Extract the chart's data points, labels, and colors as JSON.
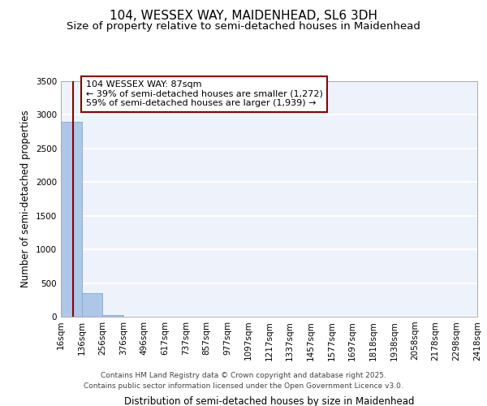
{
  "title1": "104, WESSEX WAY, MAIDENHEAD, SL6 3DH",
  "title2": "Size of property relative to semi-detached houses in Maidenhead",
  "xlabel": "Distribution of semi-detached houses by size in Maidenhead",
  "ylabel": "Number of semi-detached properties",
  "property_size": 87,
  "bin_edges": [
    16,
    136,
    256,
    376,
    496,
    617,
    737,
    857,
    977,
    1097,
    1217,
    1337,
    1457,
    1577,
    1697,
    1818,
    1938,
    2058,
    2178,
    2298,
    2418
  ],
  "bin_counts": [
    2900,
    350,
    25,
    5,
    2,
    1,
    1,
    0,
    0,
    0,
    0,
    0,
    0,
    0,
    0,
    0,
    0,
    0,
    0,
    0
  ],
  "bar_color": "#aec6e8",
  "bar_edge_color": "#7aaed0",
  "vline_color": "#8b0000",
  "annotation_box_color": "#8b0000",
  "annotation_text": "104 WESSEX WAY: 87sqm\n← 39% of semi-detached houses are smaller (1,272)\n59% of semi-detached houses are larger (1,939) →",
  "footer_line1": "Contains HM Land Registry data © Crown copyright and database right 2025.",
  "footer_line2": "Contains public sector information licensed under the Open Government Licence v3.0.",
  "ylim": [
    0,
    3500
  ],
  "background_color": "#eef2fa",
  "grid_color": "#ffffff",
  "title1_fontsize": 11,
  "title2_fontsize": 9.5,
  "xlabel_fontsize": 8.5,
  "ylabel_fontsize": 8.5,
  "tick_fontsize": 7.5,
  "annotation_fontsize": 8,
  "footer_fontsize": 6.5
}
